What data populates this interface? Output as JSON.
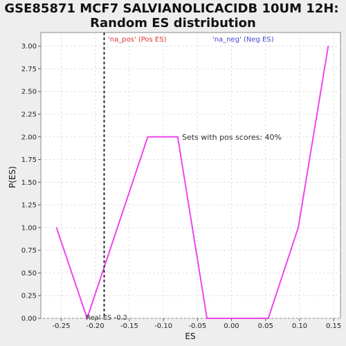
{
  "chart_data": {
    "type": "line",
    "title_line1": "GSE85871 MCF7 SALVIANOLICACIDB 10UM 12H:",
    "title_line2": "Random ES distribution",
    "xlabel": "ES",
    "ylabel": "P(ES)",
    "xlim": [
      -0.28,
      0.16
    ],
    "ylim": [
      0,
      3.15
    ],
    "xticks": [
      "-0.25",
      "-0.20",
      "-0.15",
      "-0.10",
      "-0.05",
      "0.00",
      "0.05",
      "0.10",
      "0.15"
    ],
    "xtick_values": [
      -0.25,
      -0.2,
      -0.15,
      -0.1,
      -0.05,
      0.0,
      0.05,
      0.1,
      0.15
    ],
    "yticks": [
      "0.00",
      "0.25",
      "0.50",
      "0.75",
      "1.00",
      "1.25",
      "1.50",
      "1.75",
      "2.00",
      "2.25",
      "2.50",
      "2.75",
      "3.00"
    ],
    "ytick_values": [
      0,
      0.25,
      0.5,
      0.75,
      1.0,
      1.25,
      1.5,
      1.75,
      2.0,
      2.25,
      2.5,
      2.75,
      3.0
    ],
    "grid": true,
    "series": [
      {
        "color": "#ee44ee",
        "x": [
          -0.257,
          -0.212,
          -0.123,
          -0.079,
          -0.036,
          0.009,
          0.054,
          0.098,
          0.142
        ],
        "y": [
          1.0,
          0.0,
          2.0,
          2.0,
          0.0,
          0.0,
          0.0,
          1.0,
          3.0
        ]
      }
    ],
    "real_es": {
      "value": -0.187,
      "label": "Real ES -0.2"
    },
    "legend_pos": {
      "text": "'na_pos' (Pos ES)",
      "color": "#dd3333"
    },
    "legend_neg": {
      "text": "'na_neg' (Neg ES)",
      "color": "#4444cc"
    },
    "annotation": "Sets with pos scores: 40%"
  }
}
